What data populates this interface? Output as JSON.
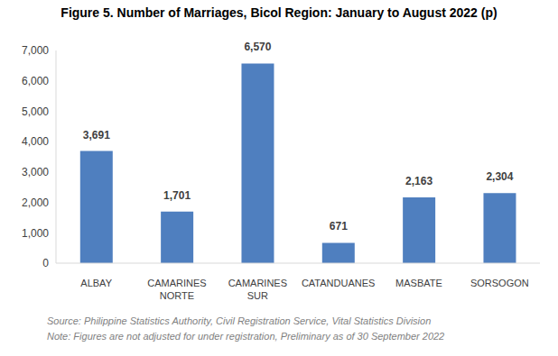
{
  "chart_data": {
    "type": "bar",
    "title": "Figure 5.  Number of Marriages, Bicol Region: January to August 2022 (p)",
    "categories": [
      "ALBAY",
      "CAMARINES NORTE",
      "CAMARINES SUR",
      "CATANDUANES",
      "MASBATE",
      "SORSOGON"
    ],
    "values": [
      3691,
      1701,
      6570,
      671,
      2163,
      2304
    ],
    "value_labels": [
      "3,691",
      "1,701",
      "6,570",
      "671",
      "2,163",
      "2,304"
    ],
    "data_labels": true,
    "color": "#4f7fbf",
    "ylim": [
      0,
      7000
    ],
    "yticks": [
      0,
      {
        "value": 1000,
        "label": "1,000"
      },
      {
        "value": 2000,
        "label": "2,000"
      },
      {
        "value": 3000,
        "label": "3,000"
      },
      {
        "value": 4000,
        "label": "4,000"
      },
      {
        "value": 5000,
        "label": "5,000"
      },
      {
        "value": 6000,
        "label": "6,000"
      },
      {
        "value": 7000,
        "label": "7,000"
      }
    ],
    "grid": false,
    "annotations": [
      "Source: Philippine Statistics Authority, Civil Registration Service, Vital Statistics Division",
      "Note: Figures are not adjusted for under registration, Preliminary as of 30 September 2022"
    ]
  }
}
